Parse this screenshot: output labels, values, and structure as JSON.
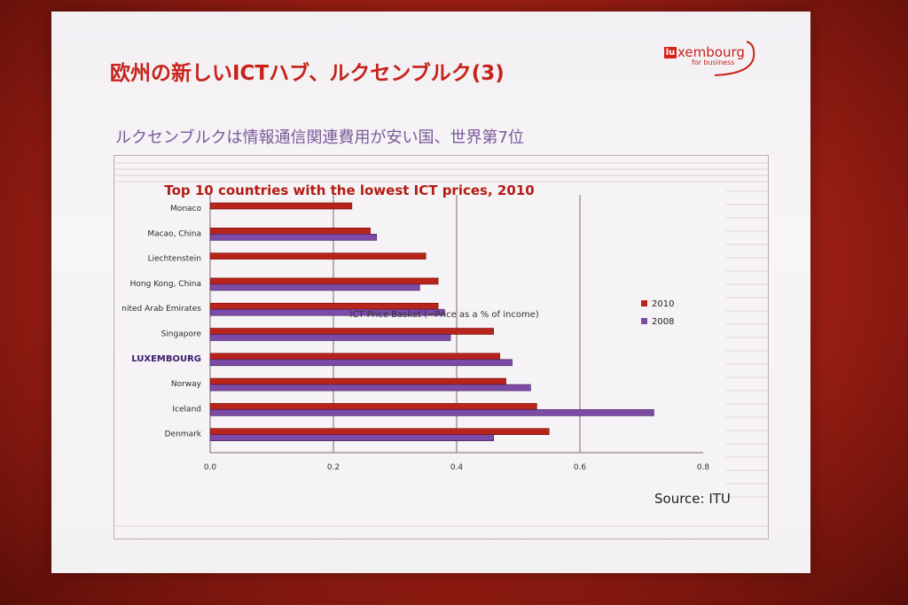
{
  "slide": {
    "title": "欧州の新しいICTハブ、ルクセンブルク(3)",
    "subtitle": "ルクセンブルクは情報通信関連費用が安い国、世界第7位",
    "source": "Source: ITU",
    "logo": {
      "badge": "lu",
      "word": "xembourg",
      "sub": "for business"
    }
  },
  "colors": {
    "c2010": "#b8231b",
    "c2008": "#7d4aa6",
    "title": "#c8221a",
    "highlight": "#3a1a6a"
  },
  "chart_data": {
    "type": "bar",
    "orientation": "horizontal",
    "title": "Top 10 countries with the lowest ICT prices, 2010",
    "xlabel": "ICT Price Basket (=Price as a % of income)",
    "xlim": [
      0,
      0.8
    ],
    "xticks": [
      "0.0",
      "0.2",
      "0.4",
      "0.6",
      "0.8"
    ],
    "categories": [
      "Monaco",
      "Macao, China",
      "Liechtenstein",
      "Hong Kong, China",
      "nited Arab Emirates",
      "Singapore",
      "LUXEMBOURG",
      "Norway",
      "Iceland",
      "Denmark"
    ],
    "highlight_category": "LUXEMBOURG",
    "series": [
      {
        "name": "2010",
        "values": [
          0.23,
          0.26,
          0.35,
          0.37,
          0.37,
          0.46,
          0.47,
          0.48,
          0.53,
          0.55
        ]
      },
      {
        "name": "2008",
        "values": [
          null,
          0.27,
          null,
          0.34,
          0.38,
          0.39,
          0.49,
          0.52,
          0.72,
          0.46
        ]
      }
    ],
    "legend_position": "right",
    "grid": "vertical"
  }
}
